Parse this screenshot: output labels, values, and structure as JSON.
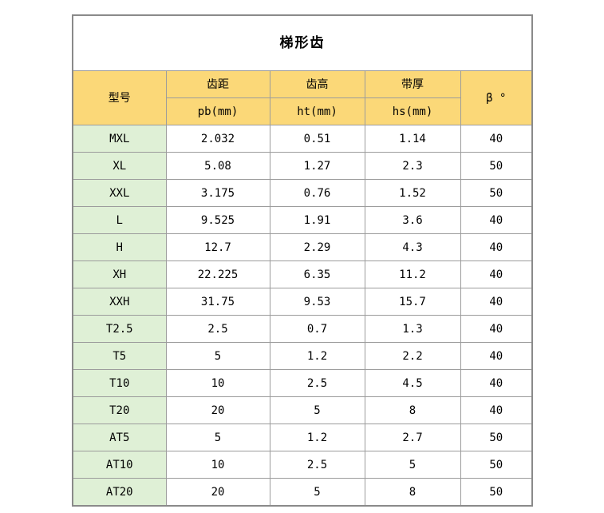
{
  "table": {
    "title": "梯形齿",
    "header": {
      "model": "型号",
      "groups": [
        {
          "label": "齿距",
          "sub": "pb(mm)"
        },
        {
          "label": "齿高",
          "sub": "ht(mm)"
        },
        {
          "label": "带厚",
          "sub": "hs(mm)"
        }
      ],
      "beta": "β °"
    },
    "rows": [
      {
        "model": "MXL",
        "pb": "2.032",
        "ht": "0.51",
        "hs": "1.14",
        "beta": "40"
      },
      {
        "model": "XL",
        "pb": "5.08",
        "ht": "1.27",
        "hs": "2.3",
        "beta": "50"
      },
      {
        "model": "XXL",
        "pb": "3.175",
        "ht": "0.76",
        "hs": "1.52",
        "beta": "50"
      },
      {
        "model": "L",
        "pb": "9.525",
        "ht": "1.91",
        "hs": "3.6",
        "beta": "40"
      },
      {
        "model": "H",
        "pb": "12.7",
        "ht": "2.29",
        "hs": "4.3",
        "beta": "40"
      },
      {
        "model": "XH",
        "pb": "22.225",
        "ht": "6.35",
        "hs": "11.2",
        "beta": "40"
      },
      {
        "model": "XXH",
        "pb": "31.75",
        "ht": "9.53",
        "hs": "15.7",
        "beta": "40"
      },
      {
        "model": "T2.5",
        "pb": "2.5",
        "ht": "0.7",
        "hs": "1.3",
        "beta": "40"
      },
      {
        "model": "T5",
        "pb": "5",
        "ht": "1.2",
        "hs": "2.2",
        "beta": "40"
      },
      {
        "model": "T10",
        "pb": "10",
        "ht": "2.5",
        "hs": "4.5",
        "beta": "40"
      },
      {
        "model": "T20",
        "pb": "20",
        "ht": "5",
        "hs": "8",
        "beta": "40"
      },
      {
        "model": "AT5",
        "pb": "5",
        "ht": "1.2",
        "hs": "2.7",
        "beta": "50"
      },
      {
        "model": "AT10",
        "pb": "10",
        "ht": "2.5",
        "hs": "5",
        "beta": "50"
      },
      {
        "model": "AT20",
        "pb": "20",
        "ht": "5",
        "hs": "8",
        "beta": "50"
      }
    ]
  },
  "colors": {
    "header_bg": "#fbd878",
    "model_column_bg": "#dff0d6",
    "border": "#9c9c9c",
    "outer_border": "#8a8a8a",
    "page_bg": "#ffffff",
    "text": "#000000"
  }
}
